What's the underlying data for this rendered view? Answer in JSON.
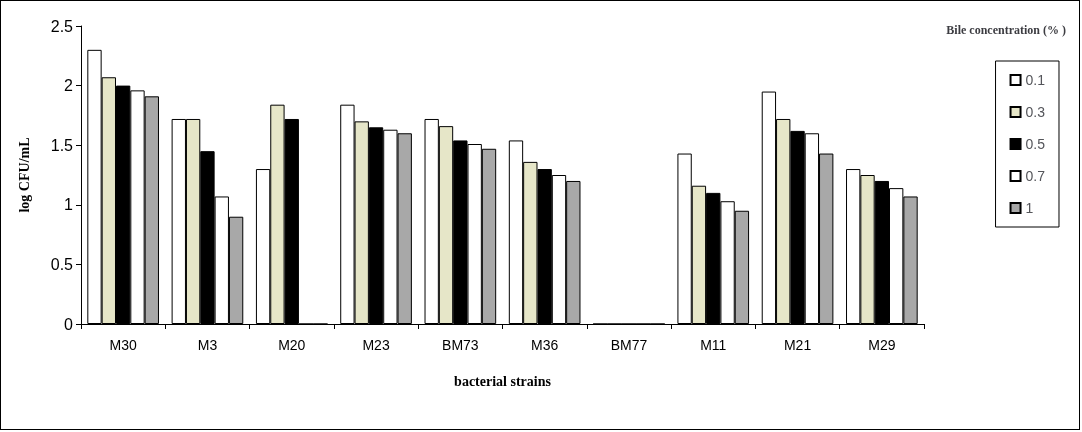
{
  "chart_data": {
    "type": "bar",
    "xlabel": "bacterial strains",
    "ylabel": "log CFU/mL",
    "legend_title": "Bile concentration (% )",
    "categories": [
      "M30",
      "M3",
      "M20",
      "M23",
      "BM73",
      "M36",
      "BM77",
      "M11",
      "M21",
      "M29"
    ],
    "series": [
      {
        "name": "0.1",
        "color": "#ffffff",
        "values": [
          2.3,
          1.72,
          1.3,
          1.84,
          1.72,
          1.54,
          0,
          1.43,
          1.95,
          1.3
        ]
      },
      {
        "name": "0.3",
        "color": "#e6e6c8",
        "values": [
          2.07,
          1.72,
          1.84,
          1.7,
          1.66,
          1.36,
          0,
          1.16,
          1.72,
          1.25
        ]
      },
      {
        "name": "0.5",
        "color": "#000000",
        "values": [
          2.0,
          1.45,
          1.72,
          1.65,
          1.54,
          1.3,
          0,
          1.1,
          1.62,
          1.2
        ]
      },
      {
        "name": "0.7",
        "color": "#ffffff",
        "values": [
          1.96,
          1.07,
          0,
          1.63,
          1.51,
          1.25,
          0,
          1.03,
          1.6,
          1.14
        ]
      },
      {
        "name": "1",
        "color": "#a8a8a8",
        "values": [
          1.91,
          0.9,
          0,
          1.6,
          1.47,
          1.2,
          0,
          0.95,
          1.43,
          1.07
        ]
      }
    ],
    "ylim": [
      0,
      2.5
    ],
    "yticks": [
      0,
      0.5,
      1,
      1.5,
      2,
      2.5
    ],
    "grid": false,
    "legend": "right"
  }
}
